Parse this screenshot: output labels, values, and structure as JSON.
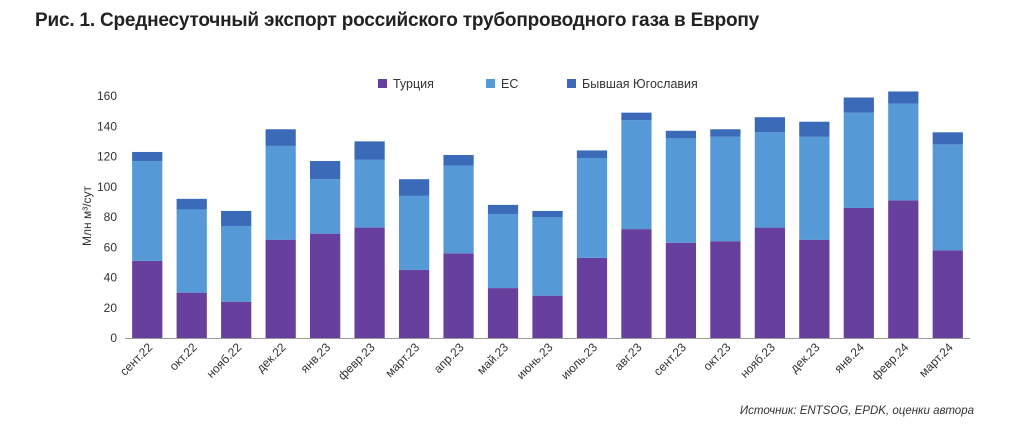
{
  "figure": {
    "title": "Рис. 1. Среднесуточный экспорт российского трубопроводного газа в Европу",
    "source": "Источник: ENTSOG, EPDK, оценки автора"
  },
  "chart_data": {
    "type": "bar",
    "stacked": true,
    "title": "",
    "xlabel": "",
    "ylabel": "Млн м³/сут",
    "ylim": [
      0,
      160
    ],
    "yticks": [
      0,
      20,
      40,
      60,
      80,
      100,
      120,
      140,
      160
    ],
    "grid": false,
    "legend_position": "top",
    "categories": [
      "сент.22",
      "окт.22",
      "нояб.22",
      "дек.22",
      "янв.23",
      "февр.23",
      "март.23",
      "апр.23",
      "май.23",
      "июнь.23",
      "июль.23",
      "авг.23",
      "сент.23",
      "окт.23",
      "нояб.23",
      "дек.23",
      "янв.24",
      "февр.24",
      "март.24"
    ],
    "series": [
      {
        "name": "Турция",
        "color": "#66409c",
        "values": [
          51,
          30,
          24,
          65,
          69,
          73,
          45,
          56,
          33,
          28,
          53,
          72,
          63,
          64,
          73,
          65,
          86,
          91,
          58
        ]
      },
      {
        "name": "ЕС",
        "color": "#559ad7",
        "values": [
          66,
          55,
          50,
          62,
          36,
          45,
          49,
          58,
          49,
          52,
          66,
          72,
          69,
          69,
          63,
          68,
          63,
          64,
          70
        ]
      },
      {
        "name": "Бывшая Югославия",
        "color": "#3a6ab8",
        "values": [
          6,
          7,
          10,
          11,
          12,
          12,
          11,
          7,
          6,
          4,
          5,
          5,
          5,
          5,
          10,
          10,
          10,
          8,
          8
        ]
      }
    ]
  }
}
